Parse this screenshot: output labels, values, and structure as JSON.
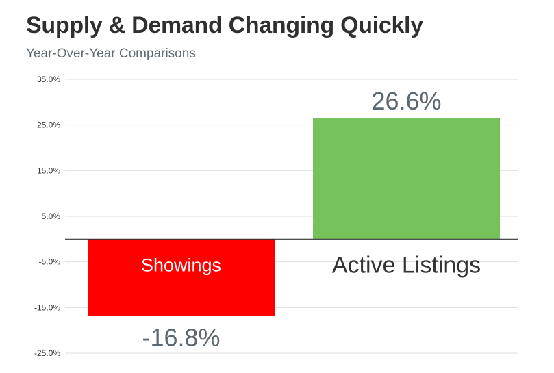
{
  "chart_data": {
    "type": "bar",
    "title": "Supply & Demand Changing Quickly",
    "subtitle": "Year-Over-Year Comparisons",
    "categories": [
      "Showings",
      "Active Listings"
    ],
    "values": [
      -16.8,
      26.6
    ],
    "data_labels": [
      "-16.8%",
      "26.6%"
    ],
    "colors": [
      "#ff0000",
      "#76c25a"
    ],
    "category_label_colors": [
      "#ffffff",
      "#333333"
    ],
    "ylim": [
      -25,
      35
    ],
    "yticks": [
      35,
      25,
      15,
      5,
      -5,
      -15,
      -25
    ],
    "ytick_labels": [
      "35.0%",
      "25.0%",
      "15.0%",
      "5.0%",
      "-5.0%",
      "-15.0%",
      "-25.0%"
    ],
    "grid": true,
    "legend": false,
    "xlabel": "",
    "ylabel": ""
  }
}
